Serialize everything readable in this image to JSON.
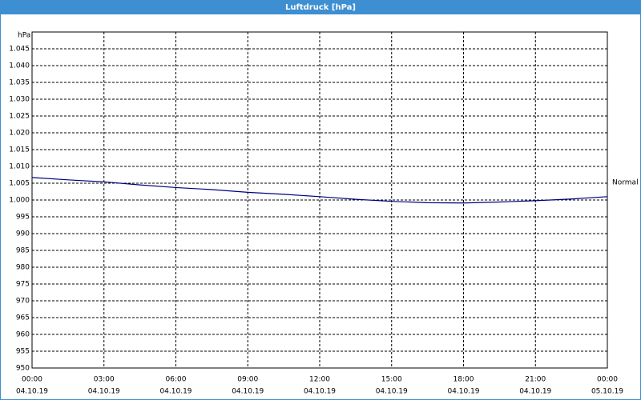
{
  "chart_data": {
    "type": "line",
    "title": "Luftdruck [hPa]",
    "y_unit": "hPa",
    "x": [
      0,
      1.5,
      3,
      4.5,
      6,
      7.5,
      9,
      10.5,
      12,
      13.5,
      15,
      16.5,
      18,
      19.5,
      21,
      22.5,
      24
    ],
    "series": [
      {
        "name": "Normal",
        "color": "#000080",
        "values": [
          1006.7,
          1006.0,
          1005.4,
          1004.5,
          1003.7,
          1003.1,
          1002.3,
          1001.7,
          1001.0,
          1000.2,
          999.6,
          999.2,
          999.1,
          999.4,
          999.8,
          1000.3,
          1001.0
        ]
      }
    ],
    "xlim": [
      0,
      24
    ],
    "xticks": [
      {
        "value": 0,
        "label": "00:00",
        "date": "04.10.19"
      },
      {
        "value": 3,
        "label": "03:00",
        "date": "04.10.19"
      },
      {
        "value": 6,
        "label": "06:00",
        "date": "04.10.19"
      },
      {
        "value": 9,
        "label": "09:00",
        "date": "04.10.19"
      },
      {
        "value": 12,
        "label": "12:00",
        "date": "04.10.19"
      },
      {
        "value": 15,
        "label": "15:00",
        "date": "04.10.19"
      },
      {
        "value": 18,
        "label": "18:00",
        "date": "04.10.19"
      },
      {
        "value": 21,
        "label": "21:00",
        "date": "04.10.19"
      },
      {
        "value": 24,
        "label": "00:00",
        "date": "05.10.19"
      }
    ],
    "ylim": [
      950,
      1050
    ],
    "yticks": [
      950,
      955,
      960,
      965,
      970,
      975,
      980,
      985,
      990,
      995,
      {
        "value": 1000,
        "label": "1.000"
      },
      {
        "value": 1005,
        "label": "1.005"
      },
      {
        "value": 1010,
        "label": "1.010"
      },
      {
        "value": 1015,
        "label": "1.015"
      },
      {
        "value": 1020,
        "label": "1.020"
      },
      {
        "value": 1025,
        "label": "1.025"
      },
      {
        "value": 1030,
        "label": "1.030"
      },
      {
        "value": 1035,
        "label": "1.035"
      },
      {
        "value": 1040,
        "label": "1.040"
      },
      {
        "value": 1045,
        "label": "1.045"
      }
    ],
    "grid": true
  }
}
